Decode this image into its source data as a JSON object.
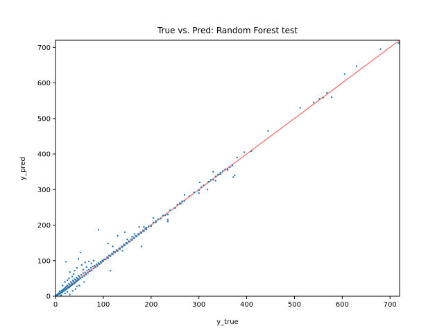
{
  "chart_data": {
    "type": "scatter",
    "title": "True vs. Pred: Random Forest test",
    "xlabel": "y_true",
    "ylabel": "y_pred",
    "xlim": [
      0,
      720
    ],
    "ylim": [
      0,
      720
    ],
    "xticks": [
      0,
      100,
      200,
      300,
      400,
      500,
      600,
      700
    ],
    "yticks": [
      0,
      100,
      200,
      300,
      400,
      500,
      600,
      700
    ],
    "grid": false,
    "colors": {
      "points": "#1f77b4",
      "identity_line": "#f08080"
    },
    "identity_line": {
      "from": [
        0,
        0
      ],
      "to": [
        720,
        720
      ]
    },
    "series": [
      {
        "name": "",
        "points": [
          [
            2,
            3
          ],
          [
            4,
            5
          ],
          [
            5,
            2
          ],
          [
            6,
            7
          ],
          [
            7,
            9
          ],
          [
            8,
            6
          ],
          [
            9,
            14
          ],
          [
            10,
            8
          ],
          [
            11,
            12
          ],
          [
            12,
            10
          ],
          [
            13,
            16
          ],
          [
            14,
            11
          ],
          [
            15,
            18
          ],
          [
            16,
            14
          ],
          [
            17,
            20
          ],
          [
            18,
            15
          ],
          [
            19,
            22
          ],
          [
            20,
            17
          ],
          [
            21,
            25
          ],
          [
            22,
            19
          ],
          [
            23,
            28
          ],
          [
            24,
            21
          ],
          [
            25,
            30
          ],
          [
            26,
            23
          ],
          [
            27,
            26
          ],
          [
            28,
            35
          ],
          [
            29,
            25
          ],
          [
            30,
            33
          ],
          [
            31,
            28
          ],
          [
            32,
            40
          ],
          [
            33,
            30
          ],
          [
            34,
            37
          ],
          [
            35,
            32
          ],
          [
            36,
            44
          ],
          [
            37,
            34
          ],
          [
            38,
            42
          ],
          [
            39,
            36
          ],
          [
            40,
            48
          ],
          [
            41,
            38
          ],
          [
            42,
            46
          ],
          [
            43,
            40
          ],
          [
            44,
            52
          ],
          [
            45,
            43
          ],
          [
            46,
            50
          ],
          [
            47,
            45
          ],
          [
            48,
            58
          ],
          [
            49,
            47
          ],
          [
            50,
            55
          ],
          [
            52,
            50
          ],
          [
            54,
            60
          ],
          [
            56,
            53
          ],
          [
            58,
            65
          ],
          [
            60,
            57
          ],
          [
            62,
            67
          ],
          [
            64,
            61
          ],
          [
            66,
            72
          ],
          [
            68,
            65
          ],
          [
            70,
            75
          ],
          [
            72,
            70
          ],
          [
            74,
            80
          ],
          [
            76,
            73
          ],
          [
            78,
            84
          ],
          [
            80,
            78
          ],
          [
            82,
            86
          ],
          [
            84,
            82
          ],
          [
            86,
            90
          ],
          [
            88,
            85
          ],
          [
            90,
            93
          ],
          [
            92,
            90
          ],
          [
            94,
            97
          ],
          [
            96,
            94
          ],
          [
            98,
            101
          ],
          [
            100,
            98
          ],
          [
            102,
            104
          ],
          [
            105,
            103
          ],
          [
            108,
            110
          ],
          [
            110,
            107
          ],
          [
            112,
            115
          ],
          [
            115,
            113
          ],
          [
            118,
            120
          ],
          [
            120,
            118
          ],
          [
            122,
            125
          ],
          [
            125,
            123
          ],
          [
            128,
            130
          ],
          [
            130,
            127
          ],
          [
            133,
            135
          ],
          [
            135,
            133
          ],
          [
            138,
            140
          ],
          [
            140,
            138
          ],
          [
            143,
            145
          ],
          [
            145,
            143
          ],
          [
            148,
            150
          ],
          [
            150,
            148
          ],
          [
            153,
            155
          ],
          [
            155,
            153
          ],
          [
            158,
            160
          ],
          [
            160,
            158
          ],
          [
            163,
            165
          ],
          [
            165,
            163
          ],
          [
            168,
            170
          ],
          [
            170,
            168
          ],
          [
            173,
            175
          ],
          [
            175,
            173
          ],
          [
            178,
            180
          ],
          [
            180,
            178
          ],
          [
            183,
            185
          ],
          [
            185,
            183
          ],
          [
            188,
            190
          ],
          [
            190,
            188
          ],
          [
            195,
            197
          ],
          [
            200,
            198
          ],
          [
            205,
            207
          ],
          [
            210,
            208
          ],
          [
            215,
            217
          ],
          [
            220,
            218
          ],
          [
            225,
            227
          ],
          [
            230,
            228
          ],
          [
            240,
            242
          ],
          [
            250,
            248
          ],
          [
            255,
            258
          ],
          [
            260,
            262
          ],
          [
            265,
            267
          ],
          [
            270,
            268
          ],
          [
            280,
            282
          ],
          [
            290,
            292
          ],
          [
            300,
            298
          ],
          [
            305,
            307
          ],
          [
            310,
            312
          ],
          [
            320,
            322
          ],
          [
            325,
            327
          ],
          [
            330,
            328
          ],
          [
            335,
            337
          ],
          [
            340,
            342
          ],
          [
            345,
            347
          ],
          [
            350,
            352
          ],
          [
            355,
            357
          ],
          [
            360,
            358
          ],
          [
            365,
            363
          ],
          [
            370,
            368
          ],
          [
            380,
            390
          ],
          [
            395,
            405
          ],
          [
            410,
            408
          ],
          [
            445,
            465
          ],
          [
            512,
            530
          ],
          [
            540,
            545
          ],
          [
            552,
            555
          ],
          [
            560,
            558
          ],
          [
            568,
            572
          ],
          [
            578,
            560
          ],
          [
            605,
            625
          ],
          [
            630,
            647
          ],
          [
            680,
            695
          ],
          [
            718,
            712
          ],
          [
            22,
            97
          ],
          [
            52,
            123
          ],
          [
            90,
            187
          ],
          [
            48,
            105
          ],
          [
            30,
            68
          ],
          [
            40,
            72
          ],
          [
            55,
            88
          ],
          [
            62,
            95
          ],
          [
            35,
            55
          ],
          [
            45,
            80
          ],
          [
            25,
            45
          ],
          [
            58,
            75
          ],
          [
            70,
            98
          ],
          [
            80,
            100
          ],
          [
            15,
            30
          ],
          [
            28,
            50
          ],
          [
            38,
            62
          ],
          [
            65,
            82
          ],
          [
            75,
            92
          ],
          [
            20,
            40
          ],
          [
            10,
            0
          ],
          [
            30,
            5
          ],
          [
            42,
            20
          ],
          [
            50,
            30
          ],
          [
            60,
            40
          ],
          [
            20,
            8
          ],
          [
            36,
            15
          ],
          [
            45,
            28
          ],
          [
            12,
            3
          ],
          [
            25,
            12
          ],
          [
            115,
            72
          ],
          [
            140,
            128
          ],
          [
            150,
            160
          ],
          [
            145,
            180
          ],
          [
            180,
            140
          ],
          [
            190,
            193
          ],
          [
            200,
            197
          ],
          [
            210,
            212
          ],
          [
            235,
            210
          ],
          [
            235,
            215
          ],
          [
            235,
            230
          ],
          [
            262,
            260
          ],
          [
            270,
            285
          ],
          [
            300,
            290
          ],
          [
            302,
            320
          ],
          [
            330,
            350
          ],
          [
            335,
            325
          ],
          [
            345,
            343
          ],
          [
            360,
            355
          ],
          [
            375,
            340
          ],
          [
            372,
            335
          ],
          [
            318,
            300
          ],
          [
            120,
            140
          ],
          [
            110,
            148
          ],
          [
            130,
            170
          ],
          [
            160,
            168
          ],
          [
            165,
            175
          ],
          [
            175,
            195
          ],
          [
            185,
            195
          ],
          [
            205,
            220
          ]
        ]
      }
    ]
  }
}
